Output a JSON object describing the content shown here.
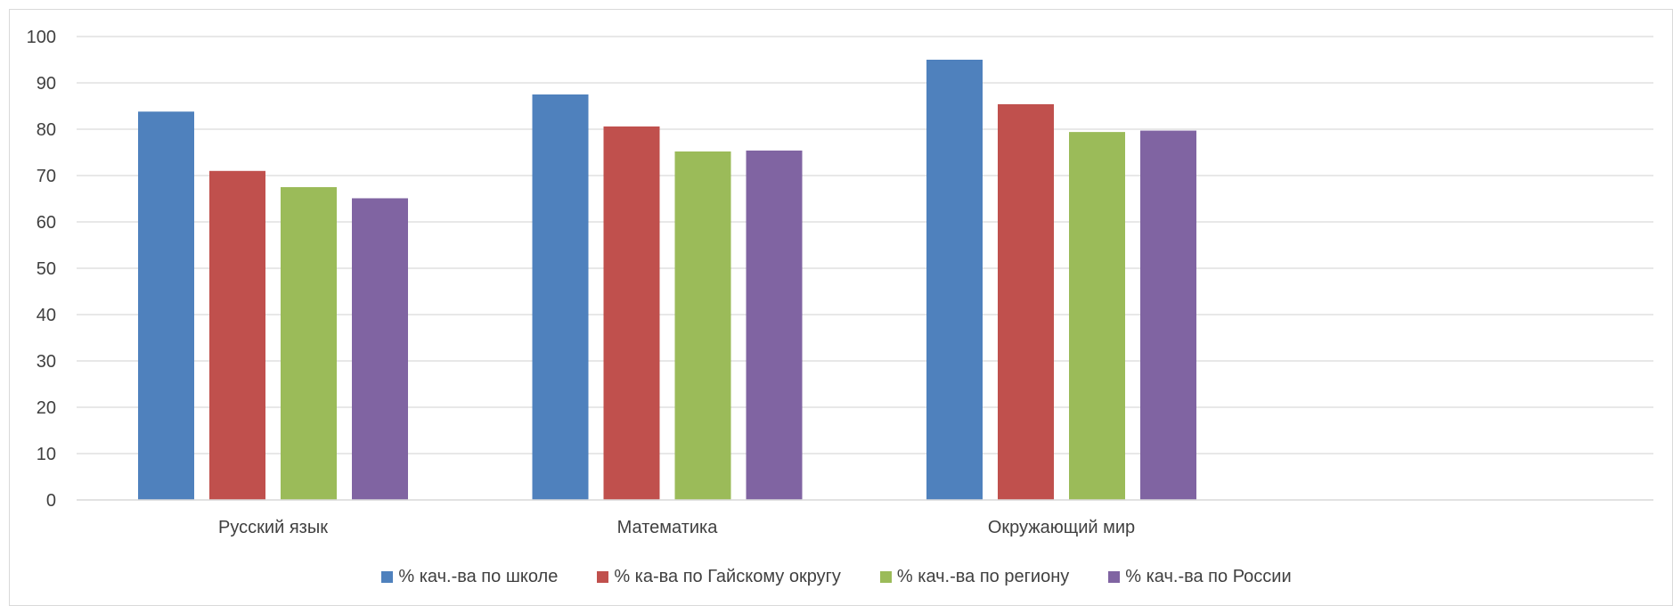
{
  "chart_data": {
    "type": "bar",
    "title": "",
    "xlabel": "",
    "ylabel": "",
    "ylim": [
      0,
      100
    ],
    "yticks": [
      0,
      10,
      20,
      30,
      40,
      50,
      60,
      70,
      80,
      90,
      100
    ],
    "grid": true,
    "legend_position": "bottom",
    "categories": [
      "Русский язык",
      "Математика",
      "Окружающий мир",
      ""
    ],
    "series": [
      {
        "name": "% кач.-ва по школе",
        "color": "#4f81bd",
        "values": [
          83.8,
          87.5,
          95.0,
          null
        ]
      },
      {
        "name": "% ка-ва по Гайскому округу",
        "color": "#c0504d",
        "values": [
          71.0,
          80.6,
          85.4,
          null
        ]
      },
      {
        "name": "% кач.-ва по региону",
        "color": "#9bbb59",
        "values": [
          67.5,
          75.2,
          79.4,
          null
        ]
      },
      {
        "name": "% кач.-ва по России",
        "color": "#8064a2",
        "values": [
          65.1,
          75.4,
          79.7,
          null
        ]
      }
    ]
  }
}
